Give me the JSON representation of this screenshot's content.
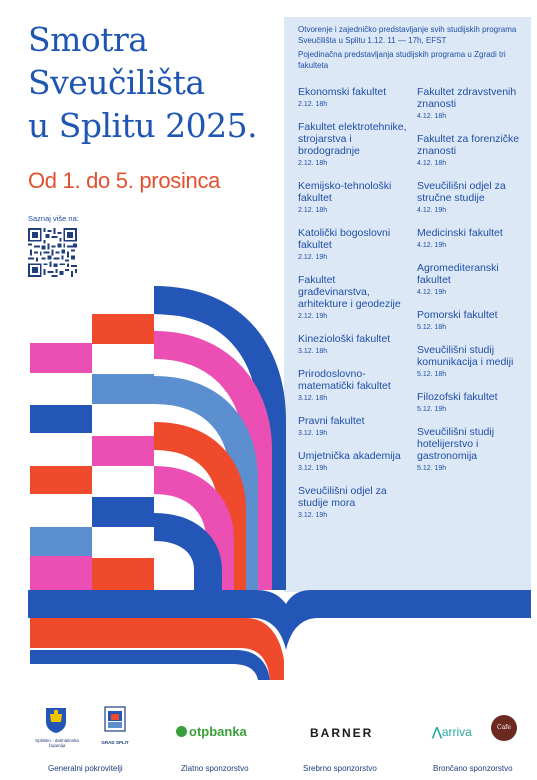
{
  "title": {
    "line1": "Smotra",
    "line2": "Sveučilišta",
    "line3": "u Splitu 2025."
  },
  "dates": "Od 1. do 5. prosinca",
  "more_label": "Saznaj više na:",
  "intro": {
    "p1": "Otvorenje i zajedničko predstavljanje svih studijskih programa Sveučilišta u Splitu 1.12. 11 — 17h, EFST",
    "p2": "Pojedinačna predstavljanja studijskih programa u Zgradi tri fakulteta"
  },
  "faculties_left": [
    {
      "name": "Ekonomski fakultet",
      "date": "2.12. 18h"
    },
    {
      "name": "Fakultet elektrotehnike, strojarstva i brodogradnje",
      "date": "2.12. 18h"
    },
    {
      "name": "Kemijsko-tehnološki fakultet",
      "date": "2.12. 18h"
    },
    {
      "name": "Katolički bogoslovni fakultet",
      "date": "2.12. 19h"
    },
    {
      "name": "Fakultet građevinarstva, arhitekture i geodezije",
      "date": "2.12. 19h"
    },
    {
      "name": "Kineziološki fakultet",
      "date": "3.12. 18h"
    },
    {
      "name": "Prirodoslovno-matematički fakultet",
      "date": "3.12. 18h"
    },
    {
      "name": "Pravni fakultet",
      "date": "3.12. 19h"
    },
    {
      "name": "Umjetnička akademija",
      "date": "3.12. 19h"
    },
    {
      "name": "Sveučilišni odjel za studije mora",
      "date": "3.12. 19h"
    }
  ],
  "faculties_right": [
    {
      "name": "Fakultet zdravstvenih znanosti",
      "date": "4.12. 18h"
    },
    {
      "name": "Fakultet za forenzičke znanosti",
      "date": "4.12. 18h"
    },
    {
      "name": "Sveučilišni odjel za stručne studije",
      "date": "4.12. 19h"
    },
    {
      "name": "Medicinski fakultet",
      "date": "4.12. 19h"
    },
    {
      "name": "Agromediteranski fakultet",
      "date": "4.12. 19h"
    },
    {
      "name": "Pomorski fakultet",
      "date": "5.12. 18h"
    },
    {
      "name": "Sveučilišni studij komunikacija i mediji",
      "date": "5.12. 18h"
    },
    {
      "name": "Filozofski fakultet",
      "date": "5.12. 19h"
    },
    {
      "name": "Sveučilišni studij hotelijerstvo i gastronomija",
      "date": "5.12. 19h"
    }
  ],
  "sponsors": {
    "general_caption": "Generalni pokrovitelji",
    "gold_caption": "Zlatno sponzorstvo",
    "silver_caption": "Srebrno sponzorstvo",
    "bronze_caption": "Brončano sponzorstvo",
    "county_name": "Splitsko - dalmatinska županija",
    "city_name": "GRAD SPLIT",
    "otp_logo": "otpbanka",
    "barner_logo": "BARNER",
    "arriva_logo": "arriva",
    "cafe_logo": "Cafe mio"
  },
  "colors": {
    "blue": "#2456b8",
    "light_blue": "#5b8fd0",
    "pink": "#ec4fb3",
    "red": "#ef4a2c",
    "panel": "#dde8f6"
  }
}
